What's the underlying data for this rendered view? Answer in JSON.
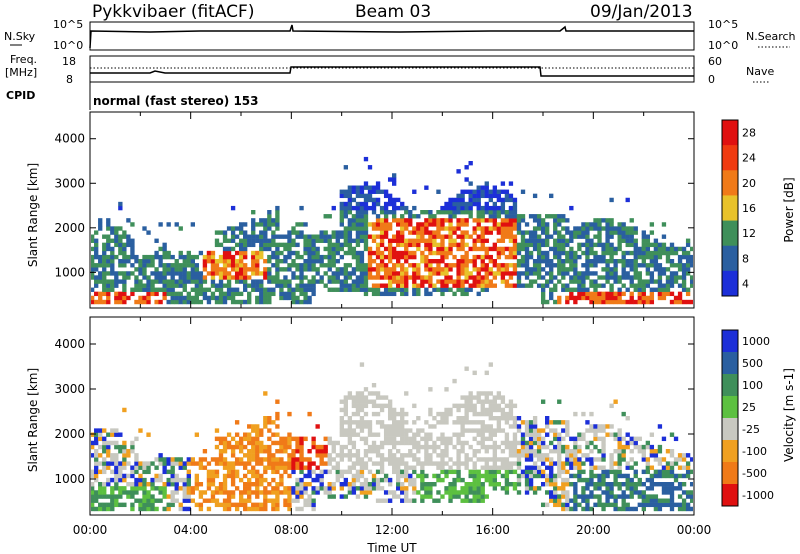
{
  "header": {
    "title": "Pykkvibaer (fitACF)",
    "beam": "Beam 03",
    "date": "09/Jan/2013"
  },
  "top_panels": {
    "nsky_label": "N.Sky",
    "nsearch_label": "N.Search",
    "scale_hi": "10^5",
    "scale_lo": "10^0",
    "freq_label_1": "Freq.",
    "freq_label_2": "[MHz]",
    "freq_ticks": [
      "18",
      "8"
    ],
    "nave_label": "Nave",
    "nave_ticks": [
      "60",
      "0"
    ],
    "cpid_label": "CPID",
    "cpid_text": "normal (fast stereo) 153"
  },
  "colors": {
    "blue": "#1c2fd8",
    "green": "#3f8f5a",
    "yellow": "#e8c22a",
    "orange": "#f07a18",
    "red": "#e01010",
    "gray": "#c8c8c0"
  },
  "chart_data": [
    {
      "type": "heatmap",
      "name": "power",
      "ylabel": "Slant Range [km]",
      "yticks": [
        1000,
        2000,
        3000,
        4000
      ],
      "ylim": [
        200,
        4600
      ],
      "xlim": [
        0,
        24
      ],
      "xticks": [
        "00:00",
        "04:00",
        "08:00",
        "12:00",
        "16:00",
        "20:00",
        "00:00"
      ],
      "colorbar": {
        "label": "Power [dB]",
        "ticks": [
          "28",
          "24",
          "20",
          "16",
          "12",
          "8",
          "4"
        ],
        "colors": [
          "#e01010",
          "#f03a10",
          "#f07a18",
          "#e8c22a",
          "#3f8f5a",
          "#2a5fa0",
          "#1c2fd8"
        ]
      }
    },
    {
      "type": "heatmap",
      "name": "velocity",
      "ylabel": "Slant Range [km]",
      "yticks": [
        1000,
        2000,
        3000,
        4000
      ],
      "ylim": [
        200,
        4600
      ],
      "xlim": [
        0,
        24
      ],
      "xticks": [
        "00:00",
        "04:00",
        "08:00",
        "12:00",
        "16:00",
        "20:00",
        "00:00"
      ],
      "xlabel": "Time UT",
      "colorbar": {
        "label": "Velocity [m s-1]",
        "ticks": [
          "1000",
          "500",
          "100",
          "25",
          "-25",
          "-100",
          "-500",
          "-1000"
        ],
        "colors": [
          "#1c2fd8",
          "#2a5fa0",
          "#3f8f5a",
          "#5cc040",
          "#c8c8c0",
          "#f0a020",
          "#f07a18",
          "#e01010"
        ]
      }
    }
  ]
}
